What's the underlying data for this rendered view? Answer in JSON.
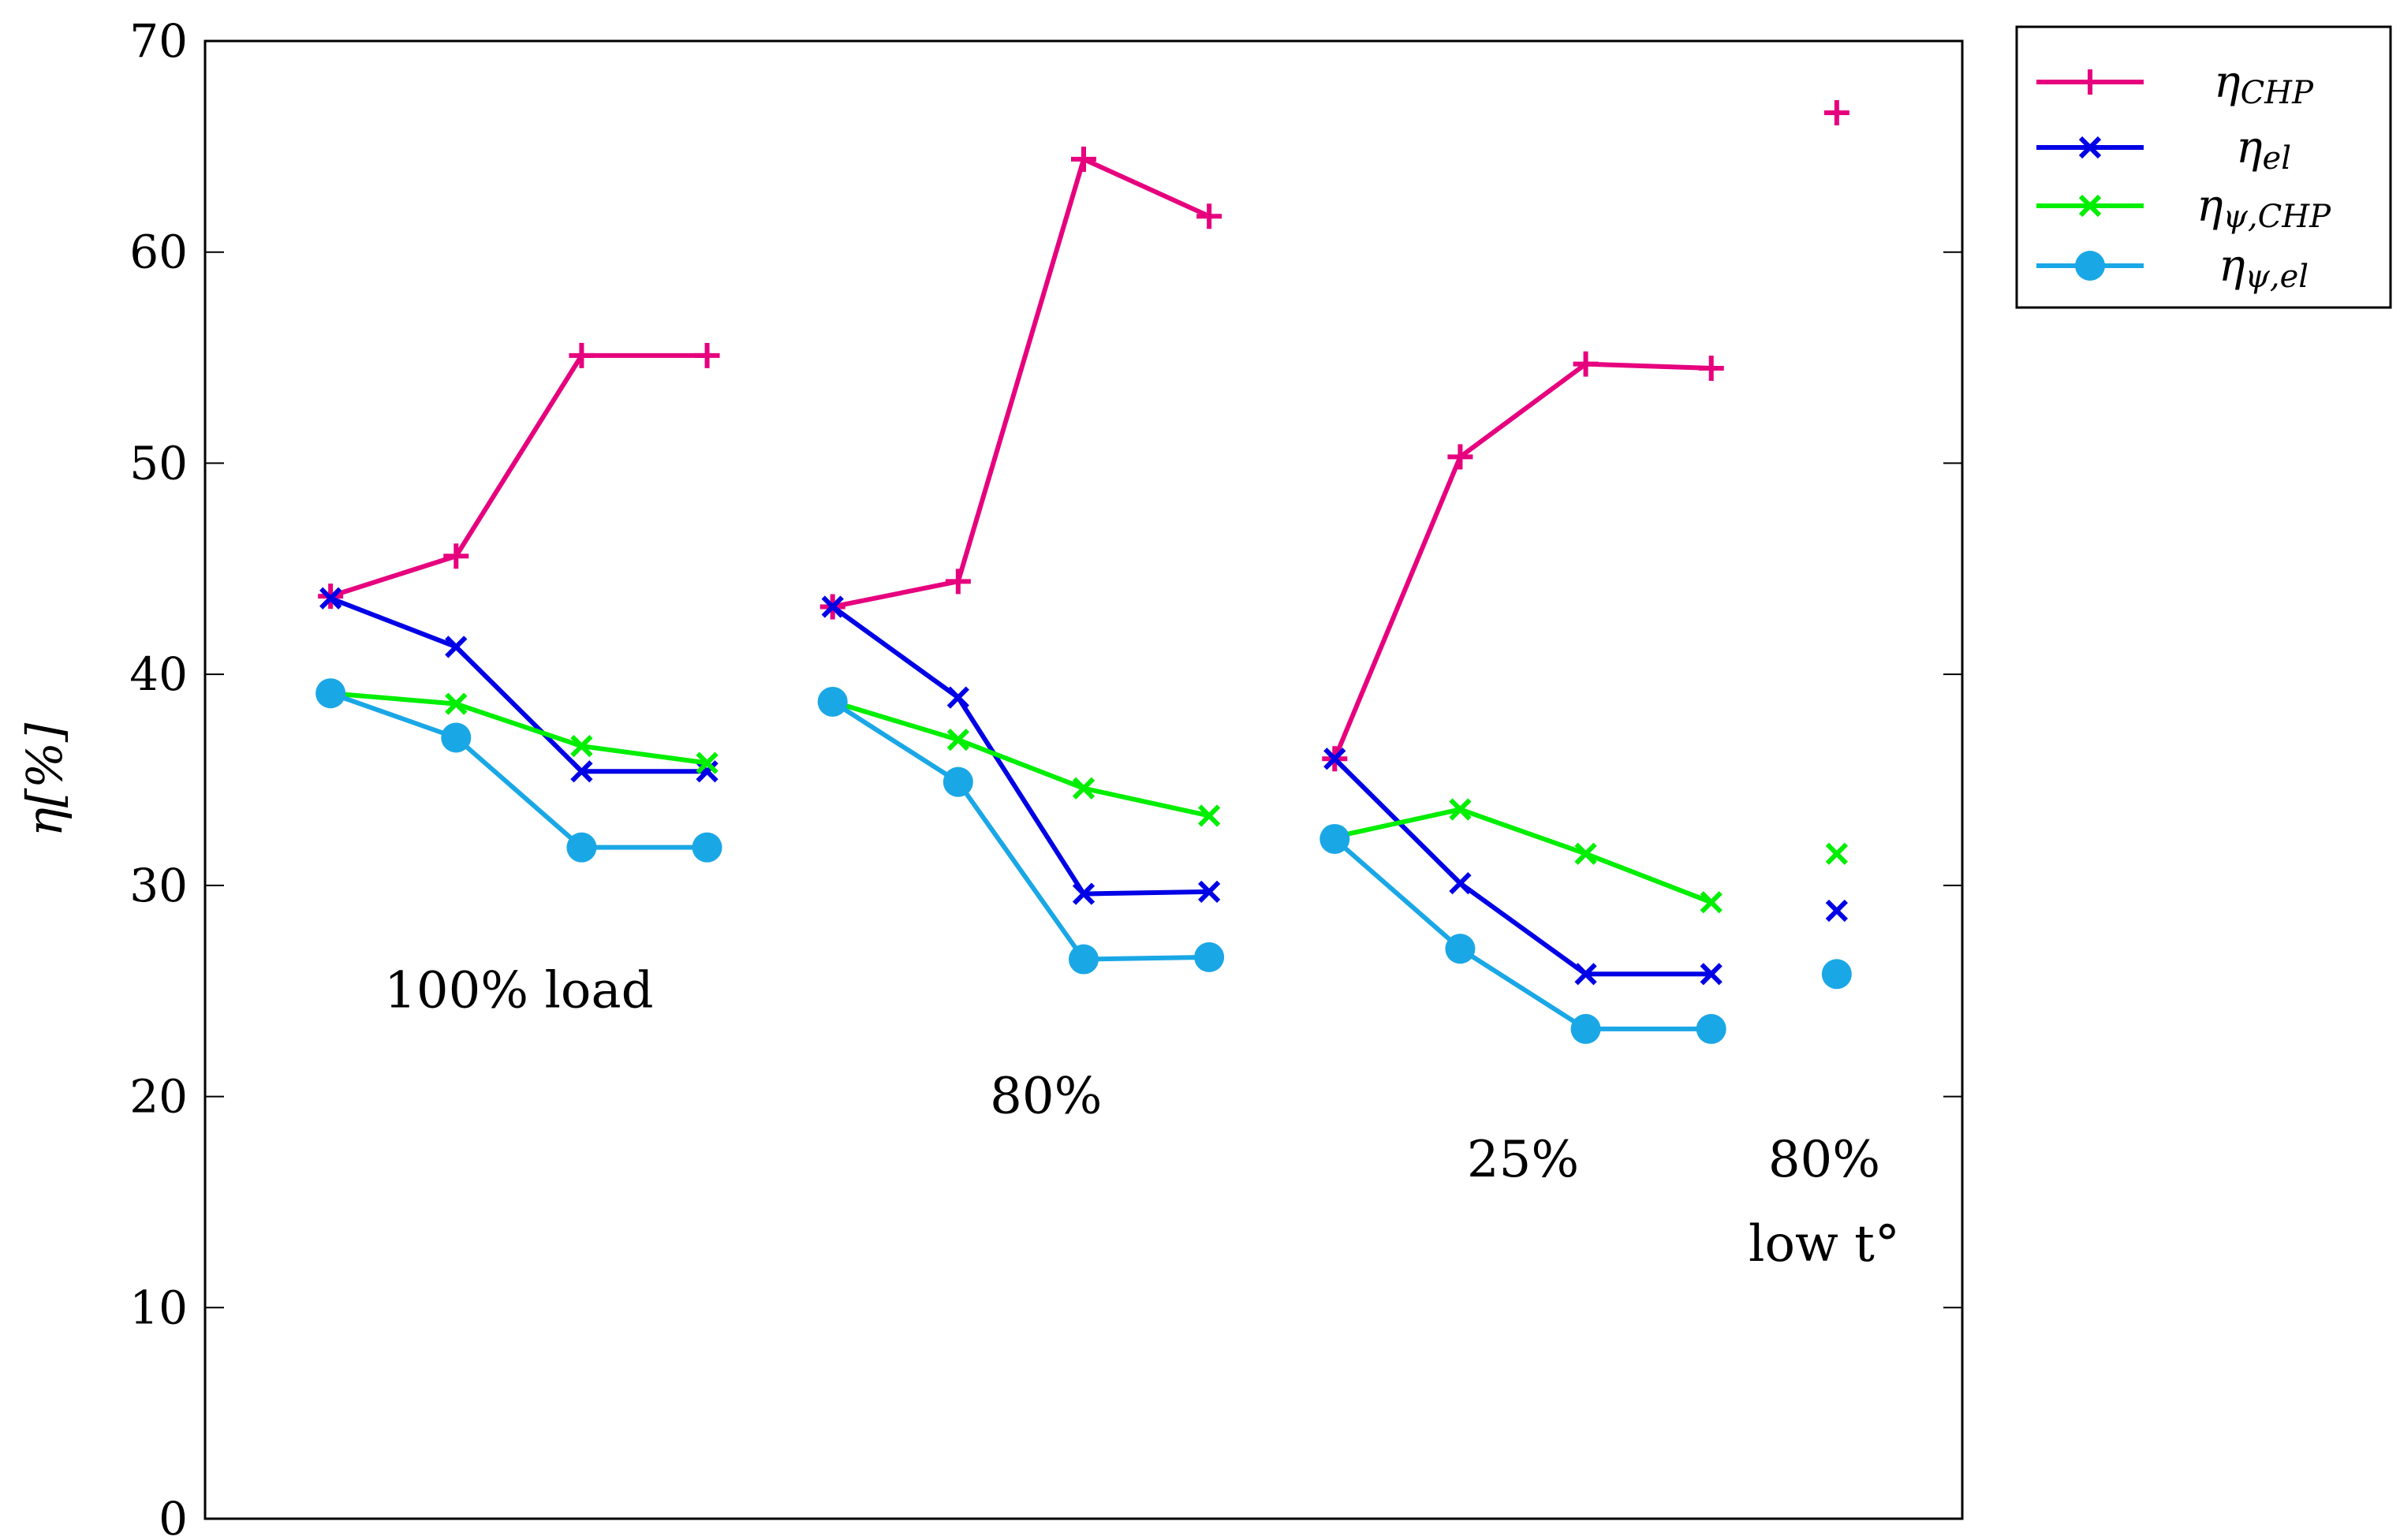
{
  "chart_data": {
    "type": "line",
    "title": "",
    "xlabel": "",
    "ylabel": "η[%]",
    "ylim": [
      0,
      70
    ],
    "xlim": [
      0,
      14
    ],
    "yticks": [
      0,
      10,
      20,
      30,
      40,
      50,
      60,
      70
    ],
    "grid": false,
    "legend_position": "outside-top-right",
    "groups": [
      {
        "name": "100% load",
        "x": [
          1,
          2,
          3,
          4
        ]
      },
      {
        "name": "80%",
        "x": [
          5,
          6,
          7,
          8
        ]
      },
      {
        "name": "25%",
        "x": [
          9,
          10,
          11,
          12
        ]
      },
      {
        "name": "80% low t°",
        "x": [
          13
        ]
      }
    ],
    "series": [
      {
        "name": "η_CHP",
        "label_main": "η",
        "label_sub": "CHP",
        "color": "#e6007e",
        "marker": "plus",
        "segments": [
          {
            "x": [
              1,
              2,
              3,
              4
            ],
            "y": [
              43.7,
              45.6,
              55.1,
              55.1
            ]
          },
          {
            "x": [
              5,
              6,
              7,
              8
            ],
            "y": [
              43.2,
              44.4,
              64.4,
              61.7
            ]
          },
          {
            "x": [
              9,
              10,
              11,
              12
            ],
            "y": [
              36.0,
              50.3,
              54.7,
              54.5
            ]
          },
          {
            "x": [
              13
            ],
            "y": [
              66.6
            ]
          }
        ]
      },
      {
        "name": "η_el",
        "label_main": "η",
        "label_sub": "el",
        "color": "#0000e6",
        "marker": "x",
        "segments": [
          {
            "x": [
              1,
              2,
              3,
              4
            ],
            "y": [
              43.6,
              41.3,
              35.4,
              35.4
            ]
          },
          {
            "x": [
              5,
              6,
              7,
              8
            ],
            "y": [
              43.2,
              38.9,
              29.6,
              29.7
            ]
          },
          {
            "x": [
              9,
              10,
              11,
              12
            ],
            "y": [
              36.0,
              30.1,
              25.8,
              25.8
            ]
          },
          {
            "x": [
              13
            ],
            "y": [
              28.8
            ]
          }
        ]
      },
      {
        "name": "η_ψ,CHP",
        "label_main": "η",
        "label_sub": "ψ,CHP",
        "color": "#00ee00",
        "marker": "x",
        "segments": [
          {
            "x": [
              1,
              2,
              3,
              4
            ],
            "y": [
              39.1,
              38.6,
              36.6,
              35.8
            ]
          },
          {
            "x": [
              5,
              6,
              7,
              8
            ],
            "y": [
              38.7,
              36.9,
              34.6,
              33.3
            ]
          },
          {
            "x": [
              9,
              10,
              11,
              12
            ],
            "y": [
              32.3,
              33.6,
              31.5,
              29.2
            ]
          },
          {
            "x": [
              13
            ],
            "y": [
              31.5
            ]
          }
        ]
      },
      {
        "name": "η_ψ,el",
        "label_main": "η",
        "label_sub": "ψ,el",
        "color": "#1aa7e6",
        "marker": "circle",
        "segments": [
          {
            "x": [
              1,
              2,
              3,
              4
            ],
            "y": [
              39.1,
              37.0,
              31.8,
              31.8
            ]
          },
          {
            "x": [
              5,
              6,
              7,
              8
            ],
            "y": [
              38.7,
              34.9,
              26.5,
              26.6
            ]
          },
          {
            "x": [
              9,
              10,
              11,
              12
            ],
            "y": [
              32.2,
              27.0,
              23.2,
              23.2
            ]
          },
          {
            "x": [
              13
            ],
            "y": [
              25.8
            ]
          }
        ]
      }
    ],
    "annotations": [
      {
        "text": "100% load",
        "x": 2.5,
        "y": 25
      },
      {
        "text": "80%",
        "x": 6.7,
        "y": 20
      },
      {
        "text": "25%",
        "x": 10.5,
        "y": 17
      },
      {
        "text": "80%",
        "x": 12.9,
        "y": 17
      },
      {
        "text": "low t°",
        "x": 12.9,
        "y": 13
      }
    ]
  }
}
